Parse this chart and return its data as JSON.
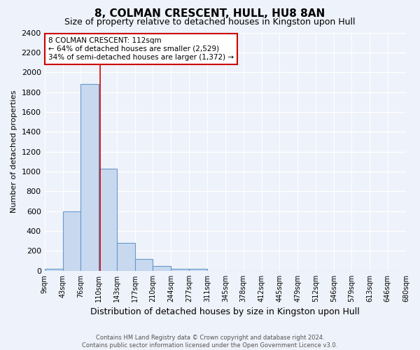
{
  "title": "8, COLMAN CRESCENT, HULL, HU8 8AN",
  "subtitle": "Size of property relative to detached houses in Kingston upon Hull",
  "xlabel": "Distribution of detached houses by size in Kingston upon Hull",
  "ylabel": "Number of detached properties",
  "bar_edges": [
    9,
    43,
    76,
    110,
    143,
    177,
    210,
    244,
    277,
    311,
    345,
    378,
    412,
    445,
    479,
    512,
    546,
    579,
    613,
    646,
    680
  ],
  "bar_heights": [
    20,
    600,
    1880,
    1030,
    280,
    115,
    45,
    20,
    20,
    0,
    0,
    0,
    0,
    0,
    0,
    0,
    0,
    0,
    0,
    0
  ],
  "bar_color": "#c8d9ef",
  "bar_edge_color": "#6699cc",
  "property_line_x": 112,
  "property_line_color": "#cc0000",
  "annotation_line1": "8 COLMAN CRESCENT: 112sqm",
  "annotation_line2": "← 64% of detached houses are smaller (2,529)",
  "annotation_line3": "34% of semi-detached houses are larger (1,372) →",
  "annotation_box_color": "#ffffff",
  "annotation_box_edge": "#cc0000",
  "ylim": [
    0,
    2400
  ],
  "yticks": [
    0,
    200,
    400,
    600,
    800,
    1000,
    1200,
    1400,
    1600,
    1800,
    2000,
    2200,
    2400
  ],
  "tick_labels": [
    "9sqm",
    "43sqm",
    "76sqm",
    "110sqm",
    "143sqm",
    "177sqm",
    "210sqm",
    "244sqm",
    "277sqm",
    "311sqm",
    "345sqm",
    "378sqm",
    "412sqm",
    "445sqm",
    "479sqm",
    "512sqm",
    "546sqm",
    "579sqm",
    "613sqm",
    "646sqm",
    "680sqm"
  ],
  "footer_text": "Contains HM Land Registry data © Crown copyright and database right 2024.\nContains public sector information licensed under the Open Government Licence v3.0.",
  "background_color": "#eef2fa",
  "grid_color": "#ffffff",
  "title_fontsize": 11,
  "subtitle_fontsize": 9,
  "ylabel_fontsize": 8,
  "xlabel_fontsize": 9,
  "ytick_fontsize": 8,
  "xtick_fontsize": 7
}
